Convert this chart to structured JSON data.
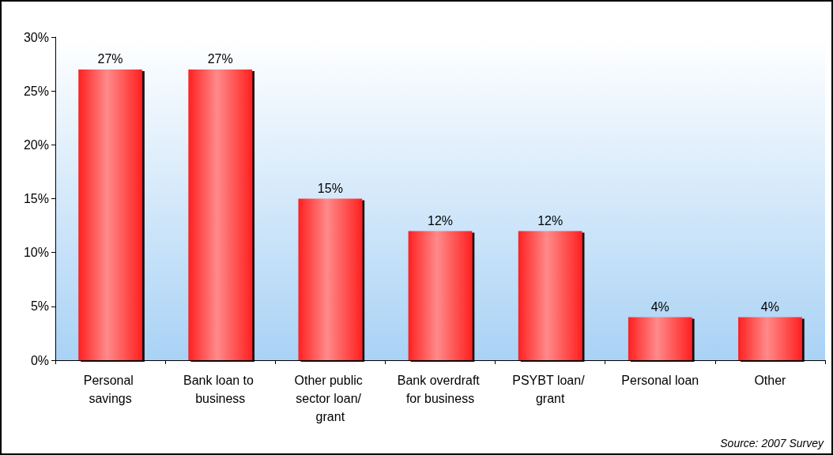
{
  "chart_data": {
    "type": "bar",
    "categories": [
      "Personal savings",
      "Bank loan to business",
      "Other public sector loan/ grant",
      "Bank overdraft for business",
      "PSYBT loan/ grant",
      "Personal loan",
      "Other"
    ],
    "values": [
      27,
      27,
      15,
      12,
      12,
      4,
      4
    ],
    "value_labels": [
      "27%",
      "27%",
      "15%",
      "12%",
      "12%",
      "4%",
      "4%"
    ],
    "color": "#ff2020",
    "ylim": [
      0,
      30
    ],
    "yticks": [
      {
        "value": 0,
        "label": "0%"
      },
      {
        "value": 5,
        "label": "5%"
      },
      {
        "value": 10,
        "label": "10%"
      },
      {
        "value": 15,
        "label": "15%"
      },
      {
        "value": 20,
        "label": "20%"
      },
      {
        "value": 25,
        "label": "25%"
      },
      {
        "value": 30,
        "label": "30%"
      }
    ],
    "grid": false,
    "annotations": [
      "Source: 2007 Survey"
    ]
  }
}
